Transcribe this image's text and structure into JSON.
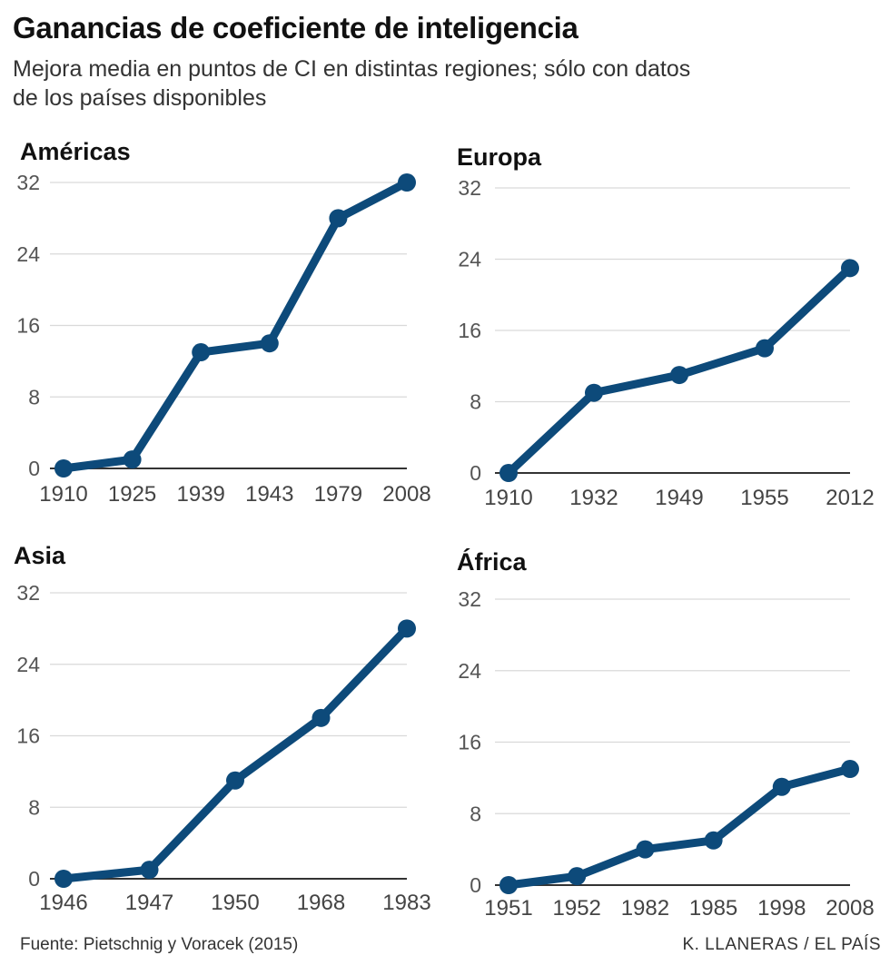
{
  "header": {
    "title": "Ganancias de coeficiente de inteligencia",
    "subtitle": "Mejora media en puntos de CI en distintas regiones; sólo con datos de los países disponibles"
  },
  "footer": {
    "source": "Fuente: Pietschnig y Voracek (2015)",
    "credit": "K. LLANERAS  /  EL PAÍS"
  },
  "colors": {
    "series": "#0d4a7a",
    "grid": "#d9d9d9",
    "baseline": "#333333"
  },
  "chart_data": [
    {
      "type": "line",
      "title": "Américas",
      "categories": [
        "1910",
        "1925",
        "1939",
        "1943",
        "1979",
        "2008"
      ],
      "values": [
        0,
        1,
        13,
        14,
        28,
        32
      ],
      "yticks": [
        0,
        8,
        16,
        24,
        32
      ],
      "ylim": [
        0,
        32
      ],
      "xlabel": "",
      "ylabel": ""
    },
    {
      "type": "line",
      "title": "Europa",
      "categories": [
        "1910",
        "1932",
        "1949",
        "1955",
        "2012"
      ],
      "values": [
        0,
        9,
        11,
        14,
        23
      ],
      "yticks": [
        0,
        8,
        16,
        24,
        32
      ],
      "ylim": [
        0,
        32
      ],
      "xlabel": "",
      "ylabel": ""
    },
    {
      "type": "line",
      "title": "Asia",
      "categories": [
        "1946",
        "1947",
        "1950",
        "1968",
        "1983"
      ],
      "values": [
        0,
        1,
        11,
        18,
        28
      ],
      "yticks": [
        0,
        8,
        16,
        24,
        32
      ],
      "ylim": [
        0,
        32
      ],
      "xlabel": "",
      "ylabel": ""
    },
    {
      "type": "line",
      "title": "África",
      "categories": [
        "1951",
        "1952",
        "1982",
        "1985",
        "1998",
        "2008"
      ],
      "values": [
        0,
        1,
        4,
        5,
        11,
        13
      ],
      "yticks": [
        0,
        8,
        16,
        24,
        32
      ],
      "ylim": [
        0,
        32
      ],
      "xlabel": "",
      "ylabel": ""
    }
  ]
}
